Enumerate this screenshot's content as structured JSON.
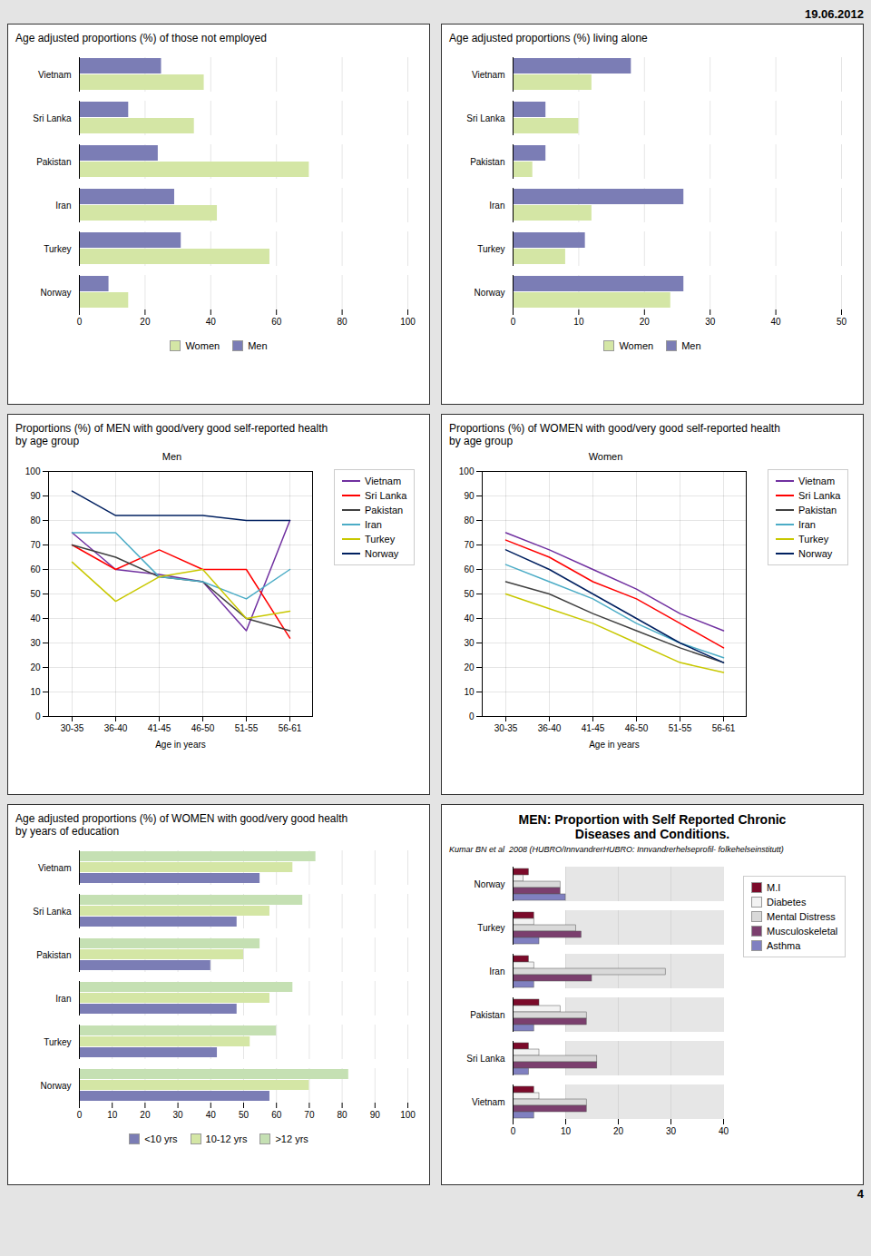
{
  "annotations": [
    "19.06.2012",
    "4"
  ],
  "chart_data": [
    {
      "type": "bar",
      "orientation": "horizontal",
      "title": "Age adjusted proportions (%) of those not employed",
      "categories": [
        "Norway",
        "Turkey",
        "Iran",
        "Pakistan",
        "Sri Lanka",
        "Vietnam"
      ],
      "series": [
        {
          "name": "Women",
          "color": "#d4e6a5",
          "values": [
            15,
            58,
            42,
            70,
            35,
            38
          ]
        },
        {
          "name": "Men",
          "color": "#7b7db5",
          "values": [
            9,
            31,
            29,
            24,
            15,
            25
          ]
        }
      ],
      "xlim": [
        0,
        100
      ],
      "xticks": [
        0,
        20,
        40,
        60,
        80,
        100
      ],
      "grid": true,
      "legend": "bottom"
    },
    {
      "type": "bar",
      "orientation": "horizontal",
      "title": "Age adjusted proportions (%) living alone",
      "categories": [
        "Norway",
        "Turkey",
        "Iran",
        "Pakistan",
        "Sri Lanka",
        "Vietnam"
      ],
      "series": [
        {
          "name": "Women",
          "color": "#d4e6a5",
          "values": [
            24,
            8,
            12,
            3,
            10,
            12
          ]
        },
        {
          "name": "Men",
          "color": "#7b7db5",
          "values": [
            26,
            11,
            26,
            5,
            5,
            18
          ]
        }
      ],
      "xlim": [
        0,
        50
      ],
      "xticks": [
        0,
        10,
        20,
        30,
        40,
        50
      ],
      "grid": true,
      "legend": "bottom"
    },
    {
      "type": "line",
      "title": "Proportions (%) of MEN with good/very good self-reported health\nby age group",
      "subtitle": "Men",
      "xlabel": "Age in years",
      "categories": [
        "30-35",
        "36-40",
        "41-45",
        "46-50",
        "51-55",
        "56-61"
      ],
      "series": [
        {
          "name": "Vietnam",
          "color": "#7030a0",
          "values": [
            75,
            60,
            58,
            55,
            35,
            80
          ]
        },
        {
          "name": "Sri Lanka",
          "color": "#ff0000",
          "values": [
            70,
            60,
            68,
            60,
            60,
            32
          ]
        },
        {
          "name": "Pakistan",
          "color": "#404040",
          "values": [
            70,
            65,
            57,
            55,
            40,
            35
          ]
        },
        {
          "name": "Iran",
          "color": "#4bacc6",
          "values": [
            75,
            75,
            57,
            55,
            48,
            60
          ]
        },
        {
          "name": "Turkey",
          "color": "#c8c800",
          "values": [
            63,
            47,
            57,
            60,
            40,
            43
          ]
        },
        {
          "name": "Norway",
          "color": "#002060",
          "values": [
            92,
            82,
            82,
            82,
            80,
            80
          ]
        }
      ],
      "ylim": [
        0,
        100
      ],
      "yticks": [
        0,
        10,
        20,
        30,
        40,
        50,
        60,
        70,
        80,
        90,
        100
      ],
      "grid": true,
      "legend": "right"
    },
    {
      "type": "line",
      "title": "Proportions (%) of WOMEN with good/very good self-reported health\nby age group",
      "subtitle": "Women",
      "xlabel": "Age in years",
      "categories": [
        "30-35",
        "36-40",
        "41-45",
        "46-50",
        "51-55",
        "56-61"
      ],
      "series": [
        {
          "name": "Vietnam",
          "color": "#7030a0",
          "values": [
            75,
            68,
            60,
            52,
            42,
            35
          ]
        },
        {
          "name": "Sri Lanka",
          "color": "#ff0000",
          "values": [
            72,
            65,
            55,
            48,
            38,
            28
          ]
        },
        {
          "name": "Pakistan",
          "color": "#404040",
          "values": [
            55,
            50,
            42,
            35,
            28,
            22
          ]
        },
        {
          "name": "Iran",
          "color": "#4bacc6",
          "values": [
            62,
            55,
            48,
            38,
            30,
            24
          ]
        },
        {
          "name": "Turkey",
          "color": "#c8c800",
          "values": [
            50,
            44,
            38,
            30,
            22,
            18
          ]
        },
        {
          "name": "Norway",
          "color": "#002060",
          "values": [
            68,
            60,
            50,
            40,
            30,
            22
          ]
        }
      ],
      "ylim": [
        0,
        100
      ],
      "yticks": [
        0,
        10,
        20,
        30,
        40,
        50,
        60,
        70,
        80,
        90,
        100
      ],
      "grid": true,
      "legend": "right"
    },
    {
      "type": "bar",
      "orientation": "horizontal",
      "title": "Age adjusted proportions (%) of WOMEN with good/very good health\nby years of education",
      "categories": [
        "Norway",
        "Turkey",
        "Iran",
        "Pakistan",
        "Sri Lanka",
        "Vietnam"
      ],
      "series": [
        {
          "name": "<10 yrs",
          "color": "#7b7db5",
          "values": [
            58,
            42,
            48,
            40,
            48,
            55
          ]
        },
        {
          "name": "10-12 yrs",
          "color": "#d4e6a5",
          "values": [
            70,
            52,
            58,
            50,
            58,
            65
          ]
        },
        {
          "name": ">12 yrs",
          "color": "#c5e0b3",
          "values": [
            82,
            60,
            65,
            55,
            68,
            72
          ]
        }
      ],
      "xlim": [
        0,
        100
      ],
      "xticks": [
        0,
        10,
        20,
        30,
        40,
        50,
        60,
        70,
        80,
        90,
        100
      ],
      "grid": true,
      "legend": "bottom"
    },
    {
      "type": "bar",
      "orientation": "horizontal",
      "title": "MEN: Proportion with Self Reported Chronic\nDiseases and Conditions.",
      "subtitle": "Kumar BN et al  2008 (HUBRO/InnvandrerHUBRO: Innvandrerhelseprofil- folkehelseinstitutt)",
      "categories": [
        "Vietnam",
        "Sri Lanka",
        "Pakistan",
        "Iran",
        "Turkey",
        "Norway"
      ],
      "series": [
        {
          "name": "M.I",
          "color": "#7b0a2a",
          "values": [
            4,
            3,
            5,
            3,
            4,
            3
          ]
        },
        {
          "name": "Diabetes",
          "color": "#f2f2f2",
          "values": [
            5,
            5,
            9,
            4,
            4,
            2
          ]
        },
        {
          "name": "Mental Distress",
          "color": "#d9d9d9",
          "values": [
            14,
            16,
            14,
            29,
            12,
            9
          ]
        },
        {
          "name": "Musculoskeletal",
          "color": "#7b3f6e",
          "values": [
            14,
            16,
            14,
            15,
            13,
            9
          ]
        },
        {
          "name": "Asthma",
          "color": "#8080c0",
          "values": [
            4,
            3,
            4,
            4,
            5,
            10
          ]
        }
      ],
      "xlim": [
        0,
        40
      ],
      "xticks": [
        0,
        10,
        20,
        30,
        40
      ],
      "grid": true,
      "legend": "right"
    }
  ]
}
